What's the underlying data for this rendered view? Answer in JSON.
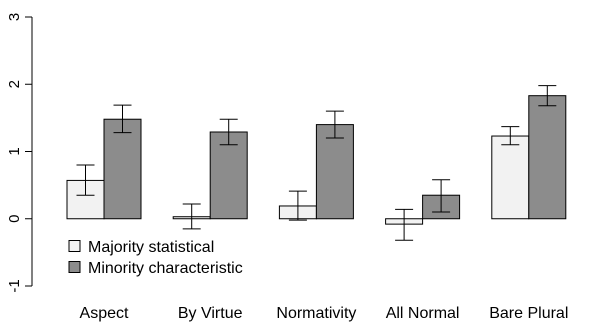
{
  "chart_data": {
    "type": "bar",
    "title": "",
    "xlabel": "",
    "ylabel": "",
    "ylim": [
      -1,
      3
    ],
    "yticks": [
      "-1",
      "0",
      "1",
      "2",
      "3"
    ],
    "yticks_values": [
      -1,
      0,
      1,
      2,
      3
    ],
    "categories": [
      "Aspect",
      "By Virtue",
      "Normativity",
      "All Normal",
      "Bare Plural"
    ],
    "series": [
      {
        "name": "Majority statistical",
        "color": "#f2f2f2",
        "values": [
          0.57,
          0.03,
          0.19,
          -0.08,
          1.23
        ],
        "error_low": [
          0.35,
          -0.15,
          -0.02,
          -0.32,
          1.1
        ],
        "error_high": [
          0.8,
          0.22,
          0.41,
          0.14,
          1.37
        ]
      },
      {
        "name": "Minority characteristic",
        "color": "#8c8c8c",
        "values": [
          1.48,
          1.29,
          1.4,
          0.35,
          1.83
        ],
        "error_low": [
          1.28,
          1.1,
          1.2,
          0.1,
          1.68
        ],
        "error_high": [
          1.69,
          1.48,
          1.6,
          0.58,
          1.98
        ]
      }
    ],
    "legend": {
      "position": "bottom-left",
      "entries": [
        "Majority statistical",
        "Minority characteristic"
      ]
    },
    "grid": false
  }
}
